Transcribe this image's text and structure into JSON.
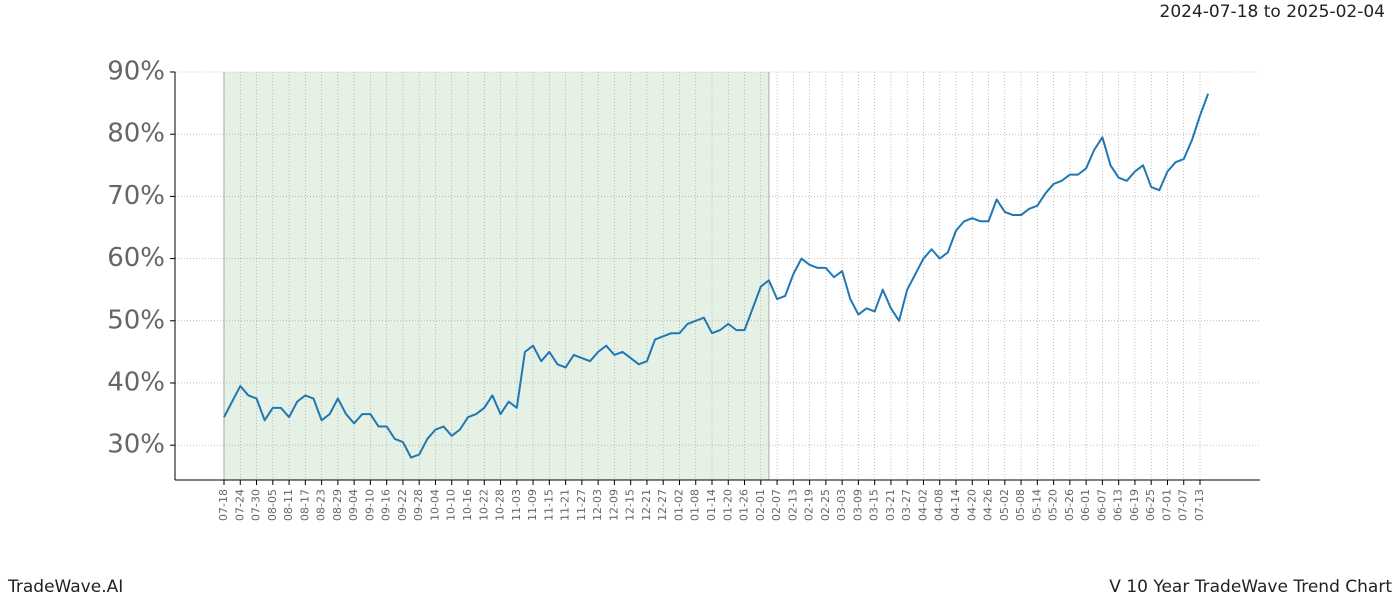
{
  "chart_data": {
    "type": "line",
    "title": "2024-07-18 to 2025-02-04",
    "footer_left": "TradeWave.AI",
    "footer_right": "V 10 Year TradeWave Trend Chart",
    "categories": [
      "07-18",
      null,
      "07-24",
      null,
      "07-30",
      null,
      "08-05",
      null,
      "08-11",
      null,
      "08-17",
      null,
      "08-23",
      null,
      "08-29",
      null,
      "09-04",
      null,
      "09-10",
      null,
      "09-16",
      null,
      "09-22",
      null,
      "09-28",
      null,
      "10-04",
      null,
      "10-10",
      null,
      "10-16",
      null,
      "10-22",
      null,
      "10-28",
      null,
      "11-03",
      null,
      "11-09",
      null,
      "11-15",
      null,
      "11-21",
      null,
      "11-27",
      null,
      "12-03",
      null,
      "12-09",
      null,
      "12-15",
      null,
      "12-21",
      null,
      "12-27",
      null,
      "01-02",
      null,
      "01-08",
      null,
      "01-14",
      null,
      "01-20",
      null,
      "01-26",
      null,
      "02-01",
      null,
      "02-07",
      null,
      "02-13",
      null,
      "02-19",
      null,
      "02-25",
      null,
      "03-03",
      null,
      "03-09",
      null,
      "03-15",
      null,
      "03-21",
      null,
      "03-27",
      null,
      "04-02",
      null,
      "04-08",
      null,
      "04-14",
      null,
      "04-20",
      null,
      "04-26",
      null,
      "05-02",
      null,
      "05-08",
      null,
      "05-14",
      null,
      "05-20",
      null,
      "05-26",
      null,
      "06-01",
      null,
      "06-07",
      null,
      "06-13",
      null,
      "06-19",
      null,
      "06-25",
      null,
      "07-01",
      null,
      "07-07",
      null,
      "07-13",
      null
    ],
    "series": [
      {
        "color": "#1f77b4",
        "values": [
          34.5,
          37,
          39.5,
          38,
          37.5,
          34,
          36,
          36,
          34.5,
          37,
          38,
          37.5,
          34,
          35,
          37.5,
          35,
          33.5,
          35,
          35,
          33,
          33,
          31,
          30.5,
          28,
          28.5,
          31,
          32.5,
          33,
          31.5,
          32.5,
          34.5,
          35,
          36,
          38,
          35,
          37,
          36,
          45,
          46,
          43.5,
          45,
          43,
          42.5,
          44.5,
          44,
          43.5,
          45,
          46,
          44.5,
          45,
          44,
          43,
          43.5,
          47,
          47.5,
          48,
          48,
          49.5,
          50,
          50.5,
          48,
          48.5,
          49.5,
          48.5,
          48.5,
          52,
          55.5,
          56.5,
          53.5,
          54,
          57.5,
          60,
          59,
          58.5,
          58.5,
          57,
          58,
          53.5,
          51,
          52,
          51.5,
          55,
          52,
          50,
          55,
          57.5,
          60,
          61.5,
          60,
          61,
          64.5,
          66,
          66.5,
          66,
          66,
          69.5,
          67.5,
          67,
          67,
          68,
          68.5,
          70.5,
          72,
          72.5,
          73.5,
          73.5,
          74.5,
          77.5,
          79.5,
          75,
          73,
          72.5,
          74,
          75,
          71.5,
          71,
          74,
          75.5,
          76,
          79,
          83,
          86.5
        ]
      }
    ],
    "highlight": {
      "start": 0,
      "end": 67,
      "color": "#e5f1e5"
    },
    "ylim": [
      24.4,
      90
    ],
    "yticks": [
      {
        "value": 30,
        "label": "30%"
      },
      {
        "value": 40,
        "label": "40%"
      },
      {
        "value": 50,
        "label": "50%"
      },
      {
        "value": 60,
        "label": "60%"
      },
      {
        "value": 70,
        "label": "70%"
      },
      {
        "value": 80,
        "label": "80%"
      },
      {
        "value": 90,
        "label": "90%"
      }
    ],
    "grid": true
  }
}
